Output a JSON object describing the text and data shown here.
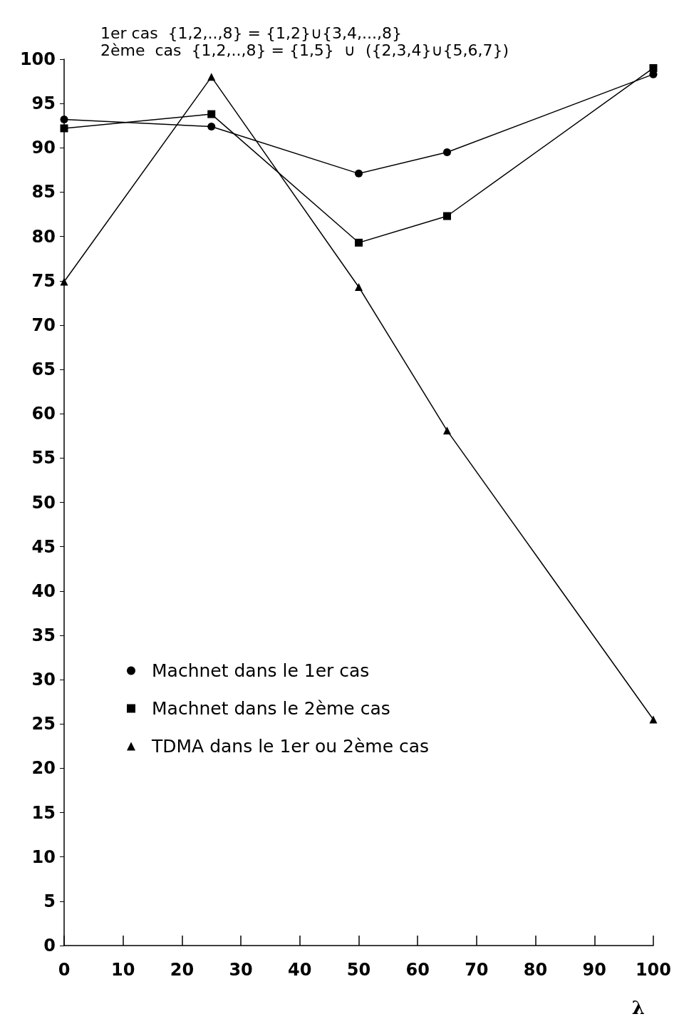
{
  "chart_data": {
    "type": "line",
    "title": "1er cas  {1,2,..,8} = {1,2}∪{3,4,...,8}",
    "subtitle": "2ème  cas  {1,2,..,8} = {1,5}  ∪  ({2,3,4}∪{5,6,7})",
    "xlabel": "λ",
    "x": [
      0,
      25,
      50,
      65,
      100
    ],
    "series": [
      {
        "name": "Machnet dans le 1er cas",
        "color": "#000000",
        "marker": "circle",
        "values": [
          93.2,
          92.4,
          87.1,
          89.5,
          98.3
        ]
      },
      {
        "name": "Machnet dans le 2ème cas",
        "color": "#000000",
        "marker": "square",
        "values": [
          92.2,
          93.8,
          79.3,
          82.3,
          99.0
        ]
      },
      {
        "name": "TDMA dans le 1er ou 2ème cas",
        "color": "#000000",
        "marker": "triangle",
        "values": [
          74.9,
          98.0,
          74.3,
          58.1,
          25.5
        ]
      }
    ],
    "xlim": [
      0,
      100
    ],
    "xticks": [
      0,
      10,
      20,
      30,
      40,
      50,
      60,
      70,
      80,
      90,
      100
    ],
    "ylim": [
      0,
      100
    ],
    "yticks": [
      0,
      5,
      10,
      15,
      20,
      25,
      30,
      35,
      40,
      45,
      50,
      55,
      60,
      65,
      70,
      75,
      80,
      85,
      90,
      95,
      100
    ],
    "grid": false,
    "legend": "left",
    "line_style": "solid"
  }
}
